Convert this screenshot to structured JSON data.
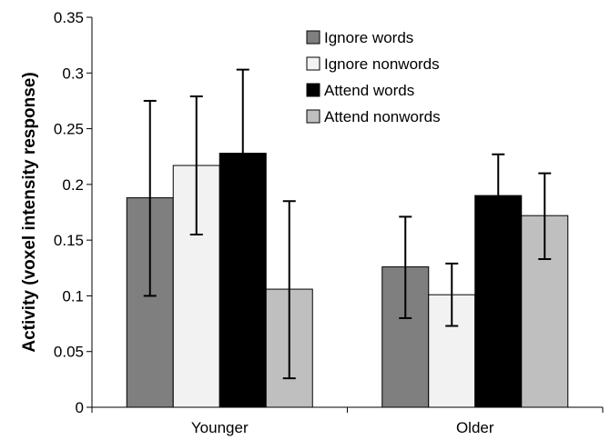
{
  "chart_data": {
    "type": "bar",
    "title": "",
    "xlabel": "",
    "ylabel": "Activity (voxel intensity response)",
    "ylim": [
      0,
      0.35
    ],
    "yticks": [
      "0",
      "0.05",
      "0.1",
      "0.15",
      "0.2",
      "0.25",
      "0.3",
      "0.35"
    ],
    "ytick_values": [
      0,
      0.05,
      0.1,
      0.15,
      0.2,
      0.25,
      0.3,
      0.35
    ],
    "categories": [
      "Younger",
      "Older"
    ],
    "grid": false,
    "legend_position": "top-right",
    "series": [
      {
        "name": "Ignore words",
        "color": "#7f7f7f",
        "values": [
          0.188,
          0.126
        ],
        "err_low": [
          0.1,
          0.08
        ],
        "err_high": [
          0.275,
          0.171
        ]
      },
      {
        "name": "Ignore nonwords",
        "color": "#f2f2f2",
        "values": [
          0.217,
          0.101
        ],
        "err_low": [
          0.155,
          0.073
        ],
        "err_high": [
          0.279,
          0.129
        ]
      },
      {
        "name": "Attend words",
        "color": "#000000",
        "values": [
          0.228,
          0.19
        ],
        "err_low": [
          0.152,
          0.152
        ],
        "err_high": [
          0.303,
          0.227
        ]
      },
      {
        "name": "Attend nonwords",
        "color": "#bfbfbf",
        "values": [
          0.106,
          0.172
        ],
        "err_low": [
          0.026,
          0.133
        ],
        "err_high": [
          0.185,
          0.21
        ]
      }
    ]
  }
}
